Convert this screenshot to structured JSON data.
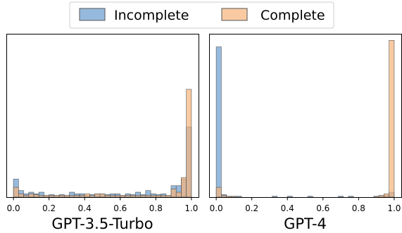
{
  "colors": {
    "incomplete": "#6a9dcf",
    "complete": "#f7b37a",
    "edge": "#555555"
  },
  "legend": {
    "items": [
      {
        "label": "Incomplete",
        "color_key": "incomplete"
      },
      {
        "label": "Complete",
        "color_key": "complete"
      }
    ],
    "placement": "top-center"
  },
  "chart_data": [
    {
      "type": "histogram",
      "title": "GPT-3.5-Turbo",
      "xlim": [
        -0.04,
        1.04
      ],
      "ylim": [
        0,
        1
      ],
      "xticks": [
        0.0,
        0.2,
        0.4,
        0.6,
        0.8,
        1.0
      ],
      "xtick_labels": [
        "0.0",
        "0.2",
        "0.4",
        "0.6",
        "0.8",
        "1.0"
      ],
      "yticks_visible": false,
      "bins": 35,
      "bin_range": [
        0,
        1
      ],
      "series": [
        {
          "name": "Incomplete",
          "values": [
            0.11,
            0.04,
            0.02,
            0.03,
            0.02,
            0.03,
            0.01,
            0.015,
            0.01,
            0.015,
            0.01,
            0.03,
            0.02,
            0.02,
            0.01,
            0.015,
            0.02,
            0.02,
            0.015,
            0.02,
            0.02,
            0.01,
            0.02,
            0.015,
            0.03,
            0.015,
            0.04,
            0.02,
            0.015,
            0.02,
            0.01,
            0.07,
            0.07,
            0.11,
            0.43
          ]
        },
        {
          "name": "Complete",
          "values": [
            0.06,
            0.02,
            0.01,
            0.02,
            0.015,
            0.01,
            0.01,
            0.01,
            0.01,
            0.01,
            0.01,
            0.01,
            0.01,
            0.01,
            0.02,
            0.01,
            0.02,
            0.02,
            0.01,
            0.01,
            0.01,
            0.01,
            0.01,
            0.01,
            0.01,
            0.01,
            0.01,
            0.01,
            0.01,
            0.01,
            0.01,
            0.05,
            0.03,
            0.12,
            0.66
          ]
        }
      ]
    },
    {
      "type": "histogram",
      "title": "GPT-4",
      "xlim": [
        -0.04,
        1.04
      ],
      "ylim": [
        0,
        1
      ],
      "xticks": [
        0.0,
        0.2,
        0.4,
        0.6,
        0.8,
        1.0
      ],
      "xtick_labels": [
        "0.0",
        "0.2",
        "0.4",
        "0.6",
        "0.8",
        "1.0"
      ],
      "yticks_visible": false,
      "bins": 35,
      "bin_range": [
        0,
        1
      ],
      "series": [
        {
          "name": "Incomplete",
          "values": [
            0.92,
            0.015,
            0.005,
            0.005,
            0.005,
            0.0,
            0.0,
            0.0,
            0.0,
            0.0,
            0.0,
            0.005,
            0.0,
            0.0,
            0.005,
            0.0,
            0.0,
            0.0,
            0.005,
            0.0,
            0.0,
            0.0,
            0.0,
            0.0,
            0.005,
            0.0,
            0.005,
            0.0,
            0.0,
            0.0,
            0.0,
            0.005,
            0.01,
            0.01,
            0.03
          ]
        },
        {
          "name": "Complete",
          "values": [
            0.06,
            0.01,
            0.005,
            0.005,
            0.0,
            0.0,
            0.0,
            0.0,
            0.0,
            0.0,
            0.0,
            0.0,
            0.0,
            0.0,
            0.0,
            0.0,
            0.0,
            0.0,
            0.0,
            0.0,
            0.0,
            0.0,
            0.0,
            0.0,
            0.0,
            0.0,
            0.0,
            0.0,
            0.0,
            0.0,
            0.0,
            0.005,
            0.01,
            0.02,
            0.96
          ]
        }
      ]
    }
  ]
}
